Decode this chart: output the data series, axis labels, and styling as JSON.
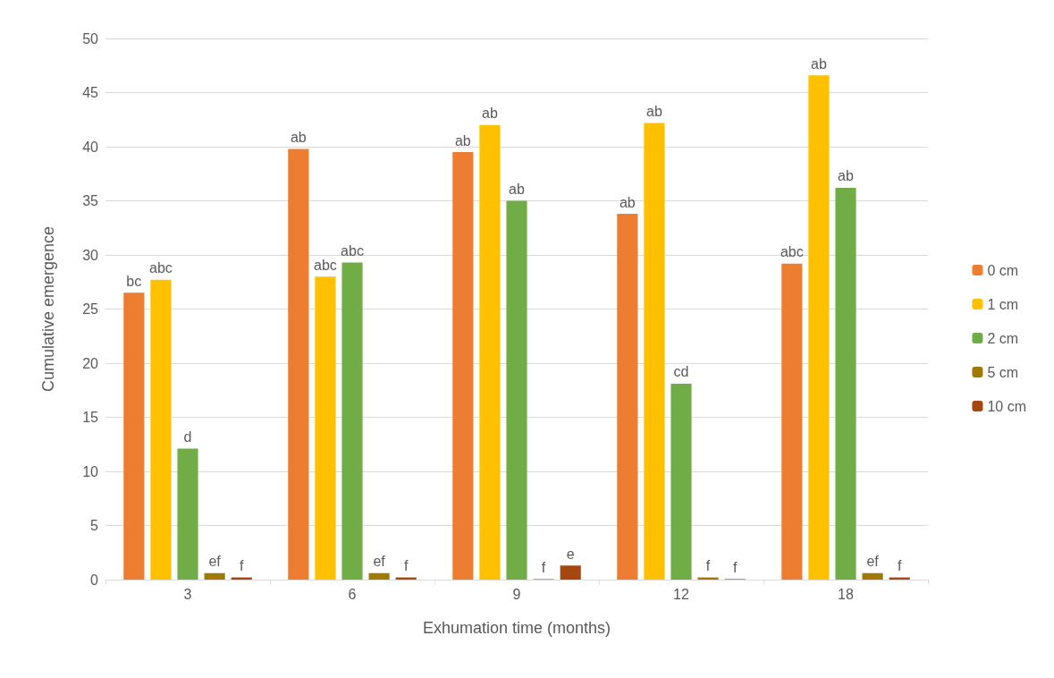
{
  "chart_data": {
    "type": "bar",
    "xlabel": "Exhumation time (months)",
    "ylabel": "Cumulative emergence",
    "categories": [
      "3",
      "6",
      "9",
      "12",
      "18"
    ],
    "series": [
      {
        "name": "0 cm",
        "color": "#ed7d31",
        "values": [
          26.5,
          39.8,
          39.5,
          33.8,
          29.2
        ],
        "value_labels": [
          "bc",
          "ab",
          "ab",
          "ab",
          "abc"
        ]
      },
      {
        "name": "1 cm",
        "color": "#ffc000",
        "values": [
          27.7,
          28.0,
          42.0,
          42.2,
          46.6
        ],
        "value_labels": [
          "abc",
          "abc",
          "ab",
          "ab",
          "ab"
        ]
      },
      {
        "name": "2 cm",
        "color": "#70ad47",
        "values": [
          12.1,
          29.3,
          35.0,
          18.1,
          36.2
        ],
        "value_labels": [
          "d",
          "abc",
          "ab",
          "cd",
          "ab"
        ]
      },
      {
        "name": "5 cm",
        "color": "#9e7a00",
        "values": [
          0.6,
          0.6,
          0.05,
          0.2,
          0.6
        ],
        "value_labels": [
          "ef",
          "ef",
          "f",
          "f",
          "ef"
        ]
      },
      {
        "name": "10 cm",
        "color": "#a5470e",
        "values": [
          0.2,
          0.2,
          1.3,
          0.05,
          0.2
        ],
        "value_labels": [
          "f",
          "f",
          "e",
          "f",
          "f"
        ]
      }
    ],
    "ylim": [
      0,
      50
    ],
    "yticks": [
      0,
      5,
      10,
      15,
      20,
      25,
      30,
      35,
      40,
      45,
      50
    ],
    "grid": "y",
    "legend": "right"
  }
}
